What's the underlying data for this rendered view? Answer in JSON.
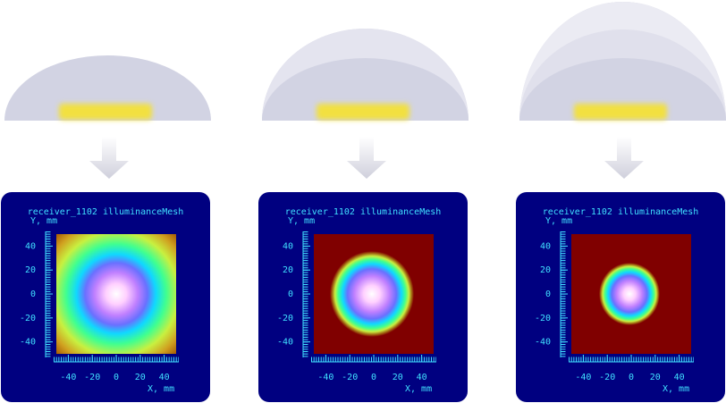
{
  "panels": [
    {
      "title": "receiver_1102 illuminanceMesh",
      "y_label": "Y, mm",
      "x_label": "X, mm",
      "yticks": [
        40,
        20,
        0,
        -20,
        -40
      ],
      "xticks": [
        -40,
        -20,
        0,
        20,
        40
      ]
    },
    {
      "title": "receiver_1102 illuminanceMesh",
      "y_label": "Y, mm",
      "x_label": "X, mm",
      "yticks": [
        40,
        20,
        0,
        -20,
        -40
      ],
      "xticks": [
        -40,
        -20,
        0,
        20,
        40
      ]
    },
    {
      "title": "receiver_1102 illuminanceMesh",
      "y_label": "Y, mm",
      "x_label": "X, mm",
      "yticks": [
        40,
        20,
        0,
        -20,
        -40
      ],
      "xticks": [
        -40,
        -20,
        0,
        20,
        40
      ]
    }
  ]
}
